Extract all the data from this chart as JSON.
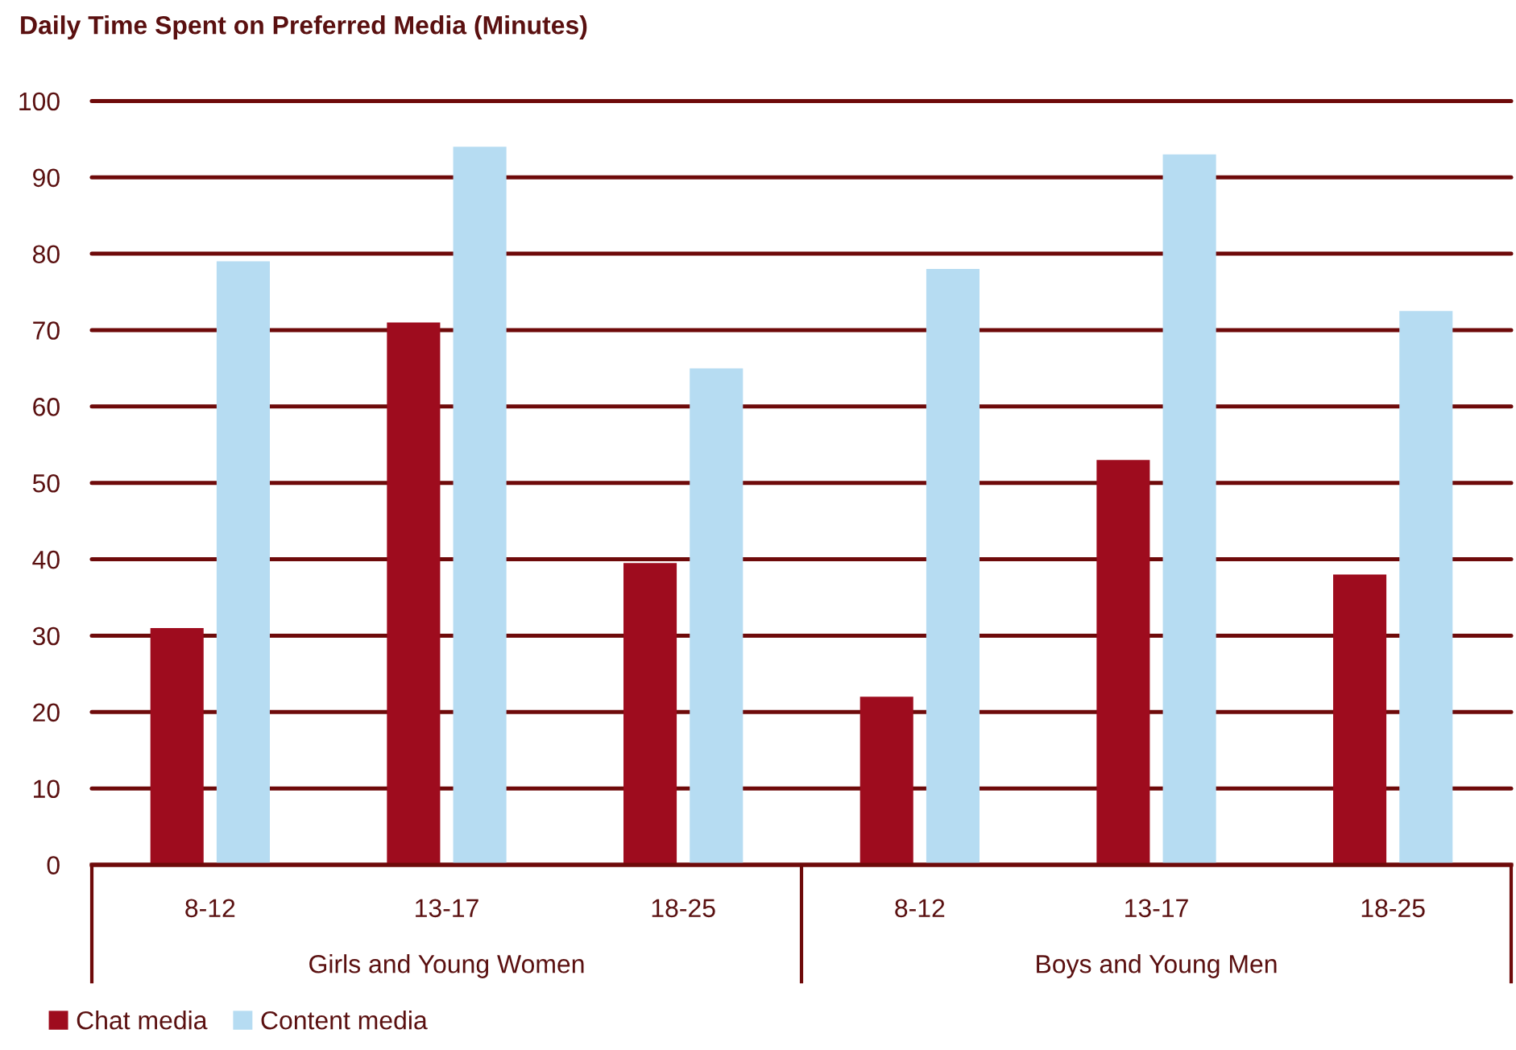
{
  "chart_data": {
    "type": "bar",
    "title": "Daily Time Spent on Preferred Media (Minutes)",
    "categories": [
      "8-12",
      "13-17",
      "18-25",
      "8-12",
      "13-17",
      "18-25"
    ],
    "series": [
      {
        "name": "Chat media",
        "color": "#9e0c1e",
        "values": [
          31,
          71,
          39.5,
          22,
          53,
          38
        ]
      },
      {
        "name": "Content media",
        "color": "#b6dcf2",
        "values": [
          79,
          94,
          65,
          78,
          93,
          72.5
        ]
      }
    ],
    "ylim": [
      0,
      100
    ],
    "yticks": [
      0,
      10,
      20,
      30,
      40,
      50,
      60,
      70,
      80,
      90,
      100
    ],
    "grid": "y",
    "legend": "bottom left",
    "annotations": [
      "Girls and Young Women",
      "Boys and Young Men"
    ]
  }
}
